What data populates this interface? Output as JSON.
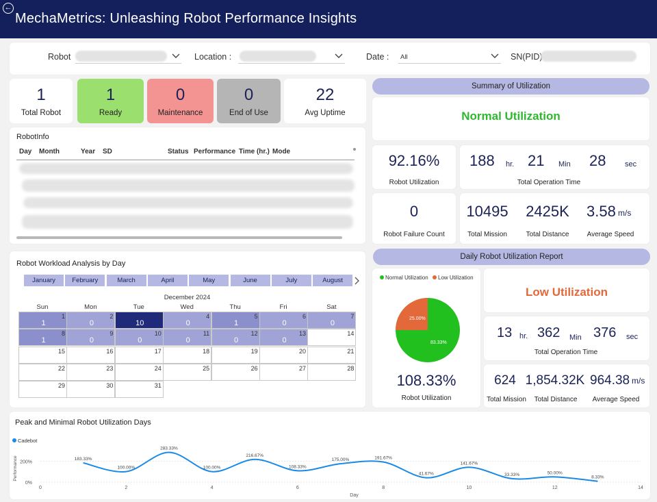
{
  "header": {
    "title": "MechaMetrics: Unleashing Robot Performance Insights",
    "back_icon": "back-arrow-icon"
  },
  "filters": {
    "robot_label": "Robot",
    "location_label": "Location :",
    "date_label": "Date :",
    "date_value": "All",
    "sn_label": "SN(PID)"
  },
  "kpis": [
    {
      "value": "1",
      "label": "Total Robot",
      "color": "#ffffff"
    },
    {
      "value": "1",
      "label": "Ready",
      "color": "#9be06e"
    },
    {
      "value": "0",
      "label": "Maintenance",
      "color": "#f49492"
    },
    {
      "value": "0",
      "label": "End of Use",
      "color": "#b5b5b5"
    },
    {
      "value": "22",
      "label": "Avg Uptime",
      "color": "#ffffff"
    }
  ],
  "robot_info": {
    "title": "RobotInfo",
    "columns": [
      "Day",
      "Month",
      "Year",
      "SD",
      "Status",
      "Performance",
      "Time (hr.)",
      "Mode"
    ]
  },
  "summary": {
    "title": "Summary of Utilization",
    "status": "Normal Utilization",
    "status_color": "#2db82d",
    "robot_utilization": "92.16%",
    "robot_utilization_label": "Robot Utilization",
    "op_hr": "188",
    "op_min": "21",
    "op_sec": "28",
    "hr_unit": "hr.",
    "min_unit": "Min",
    "sec_unit": "sec",
    "op_label": "Total Operation Time",
    "failure_count": "0",
    "failure_label": "Robot Failure Count",
    "total_mission": "10495",
    "total_mission_label": "Total Mission",
    "total_distance": "2425K",
    "total_distance_label": "Total Distance",
    "avg_speed": "3.58",
    "speed_unit": "m/s",
    "avg_speed_label": "Average Speed"
  },
  "daily": {
    "title": "Daily Robot Utilization Report",
    "legend_normal": "Normal Utilization",
    "legend_low": "Low Utilization",
    "normal_color": "#22c01e",
    "low_color": "#e3683a",
    "pie_normal_pct": "83.33%",
    "pie_low_pct": "25.00%",
    "robot_utilization": "108.33%",
    "robot_utilization_label": "Robot Utilization",
    "status": "Low Utilization",
    "status_color": "#e3683a",
    "op_hr": "13",
    "op_min": "362",
    "op_sec": "376",
    "hr_unit": "hr.",
    "min_unit": "Min",
    "sec_unit": "sec",
    "op_label": "Total Operation Time",
    "total_mission": "624",
    "total_mission_label": "Total Mission",
    "total_distance": "1,854.32K",
    "total_distance_label": "Total Distance",
    "avg_speed": "964.38",
    "speed_unit": "m/s",
    "avg_speed_label": "Average Speed"
  },
  "workload": {
    "title": "Robot Workload Analysis by Day",
    "months": [
      "January",
      "February",
      "March",
      "April",
      "May",
      "June",
      "July",
      "August"
    ],
    "calendar_title": "December 2024",
    "days_of_week": [
      "Sun",
      "Mon",
      "Tue",
      "Wed",
      "Thu",
      "Fri",
      "Sat"
    ],
    "weeks": [
      [
        {
          "d": "1",
          "v": "1"
        },
        {
          "d": "2",
          "v": "0"
        },
        {
          "d": "3",
          "v": "10"
        },
        {
          "d": "4",
          "v": "0"
        },
        {
          "d": "5",
          "v": "1"
        },
        {
          "d": "6",
          "v": "0"
        },
        {
          "d": "7",
          "v": "0"
        }
      ],
      [
        {
          "d": "8",
          "v": "1"
        },
        {
          "d": "9",
          "v": "0"
        },
        {
          "d": "10",
          "v": "0"
        },
        {
          "d": "11",
          "v": "0"
        },
        {
          "d": "12",
          "v": "0"
        },
        {
          "d": "13",
          "v": "0"
        },
        {
          "d": "14",
          "v": ""
        }
      ],
      [
        {
          "d": "15",
          "v": ""
        },
        {
          "d": "16",
          "v": ""
        },
        {
          "d": "17",
          "v": ""
        },
        {
          "d": "18",
          "v": ""
        },
        {
          "d": "19",
          "v": ""
        },
        {
          "d": "20",
          "v": ""
        },
        {
          "d": "21",
          "v": ""
        }
      ],
      [
        {
          "d": "22",
          "v": ""
        },
        {
          "d": "23",
          "v": ""
        },
        {
          "d": "24",
          "v": ""
        },
        {
          "d": "25",
          "v": ""
        },
        {
          "d": "26",
          "v": ""
        },
        {
          "d": "27",
          "v": ""
        },
        {
          "d": "28",
          "v": ""
        }
      ],
      [
        {
          "d": "29",
          "v": ""
        },
        {
          "d": "30",
          "v": ""
        },
        {
          "d": "31",
          "v": ""
        }
      ]
    ]
  },
  "peak": {
    "title": "Peak and Minimal Robot Utilization Days",
    "legend": "Cadebot",
    "legend_color": "#1b8ae6"
  },
  "chart_data": {
    "type": "line",
    "title": "Peak and Minimal Robot Utilization Days",
    "xlabel": "Day",
    "ylabel": "Performance",
    "xlim": [
      0,
      14
    ],
    "ylim": [
      0,
      300
    ],
    "x_ticks": [
      "0",
      "2",
      "4",
      "6",
      "8",
      "10",
      "12",
      "14"
    ],
    "y_ticks": [
      "0%",
      "200%"
    ],
    "series": [
      {
        "name": "Cadebot",
        "x": [
          1,
          2,
          3,
          4,
          5,
          6,
          7,
          8,
          9,
          10,
          11,
          12,
          13
        ],
        "y": [
          183.33,
          100.0,
          283.33,
          100.0,
          216.67,
          108.33,
          175.0,
          191.67,
          41.67,
          141.67,
          33.33,
          50.0,
          8.33
        ],
        "labels": [
          "183.33%",
          "100.00%",
          "283.33%",
          "100.00%",
          "216.67%",
          "108.33%",
          "175.00%",
          "191.67%",
          "41.67%",
          "141.67%",
          "33.33%",
          "50.00%",
          "8.33%"
        ]
      }
    ],
    "grid": true,
    "legend": "top-left"
  }
}
